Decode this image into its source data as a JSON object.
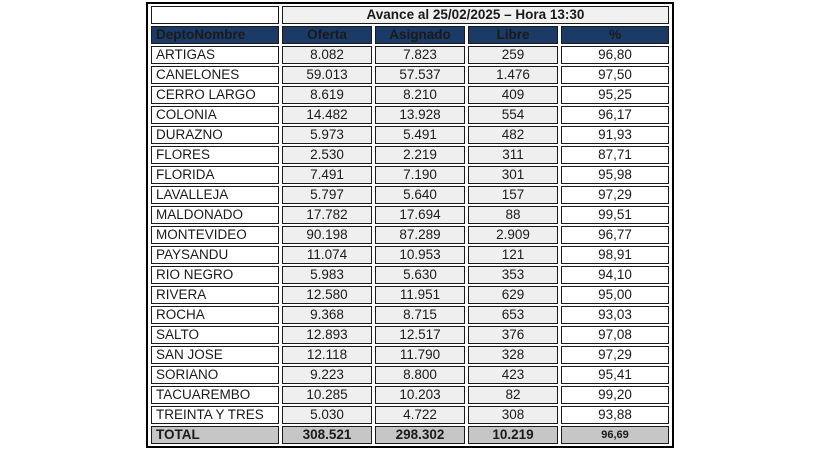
{
  "chart_data": {
    "type": "table",
    "title": "Avance al 25/02/2025 – Hora 13:30",
    "columns": [
      "DeptoNombre",
      "Oferta",
      "Asignado",
      "Libre",
      "%"
    ],
    "rows": [
      [
        "ARTIGAS",
        "8.082",
        "7.823",
        "259",
        "96,80"
      ],
      [
        "CANELONES",
        "59.013",
        "57.537",
        "1.476",
        "97,50"
      ],
      [
        "CERRO LARGO",
        "8.619",
        "8.210",
        "409",
        "95,25"
      ],
      [
        "COLONIA",
        "14.482",
        "13.928",
        "554",
        "96,17"
      ],
      [
        "DURAZNO",
        "5.973",
        "5.491",
        "482",
        "91,93"
      ],
      [
        "FLORES",
        "2.530",
        "2.219",
        "311",
        "87,71"
      ],
      [
        "FLORIDA",
        "7.491",
        "7.190",
        "301",
        "95,98"
      ],
      [
        "LAVALLEJA",
        "5.797",
        "5.640",
        "157",
        "97,29"
      ],
      [
        "MALDONADO",
        "17.782",
        "17.694",
        "88",
        "99,51"
      ],
      [
        "MONTEVIDEO",
        "90.198",
        "87.289",
        "2.909",
        "96,77"
      ],
      [
        "PAYSANDU",
        "11.074",
        "10.953",
        "121",
        "98,91"
      ],
      [
        "RIO NEGRO",
        "5.983",
        "5.630",
        "353",
        "94,10"
      ],
      [
        "RIVERA",
        "12.580",
        "11.951",
        "629",
        "95,00"
      ],
      [
        "ROCHA",
        "9.368",
        "8.715",
        "653",
        "93,03"
      ],
      [
        "SALTO",
        "12.893",
        "12.517",
        "376",
        "97,08"
      ],
      [
        "SAN JOSE",
        "12.118",
        "11.790",
        "328",
        "97,29"
      ],
      [
        "SORIANO",
        "9.223",
        "8.800",
        "423",
        "95,41"
      ],
      [
        "TACUAREMBO",
        "10.285",
        "10.203",
        "82",
        "99,20"
      ],
      [
        "TREINTA Y TRES",
        "5.030",
        "4.722",
        "308",
        "93,88"
      ]
    ],
    "total_row": [
      "TOTAL",
      "308.521",
      "298.302",
      "10.219",
      "96,69"
    ],
    "layout": {
      "grid": "on",
      "header_alignment": "name left, values centered",
      "value_columns_shaded": true
    }
  },
  "colors": {
    "header_bg": "#1c3a66",
    "header_text": "#ffffff",
    "title_bg": "#f1f1f1",
    "value_cell_bg": "#f0efef",
    "total_row_bg": "#c6c6c6",
    "border": "#000000",
    "text": "#1a1a1a"
  }
}
